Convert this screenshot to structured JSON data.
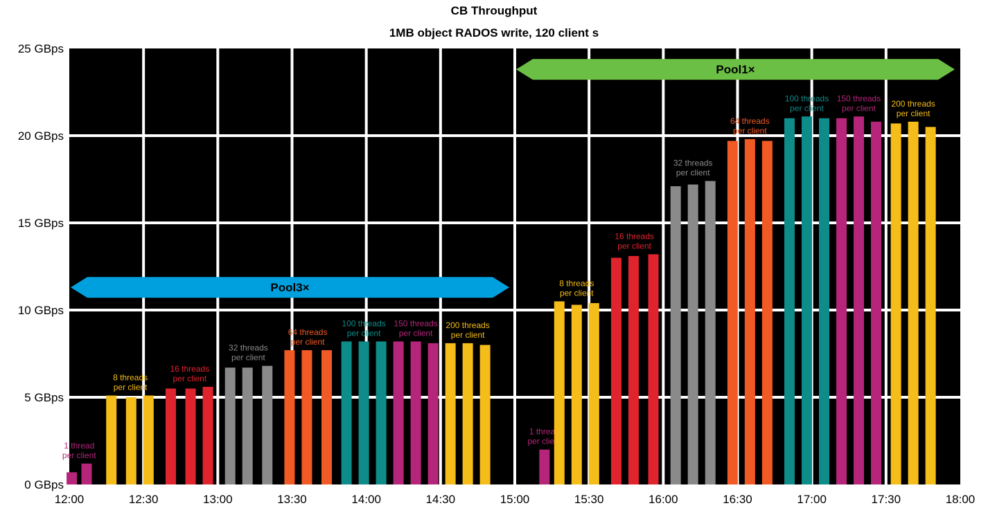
{
  "chart_data": {
    "type": "bar",
    "title": "CB Throughput",
    "subtitle": "1MB object RADOS write, 120 client s",
    "xlabel": "",
    "ylabel": "",
    "ylim": [
      0,
      25
    ],
    "y_ticks": [
      0,
      5,
      10,
      15,
      20,
      25
    ],
    "y_tick_labels": [
      "0 GBps",
      "5 GBps",
      "10 GBps",
      "15 GBps",
      "20 GBps",
      "25 GBps"
    ],
    "x_range_minutes": [
      720,
      1080
    ],
    "x_ticks_minutes": [
      720,
      750,
      780,
      810,
      840,
      870,
      900,
      930,
      960,
      990,
      1020,
      1050,
      1080
    ],
    "x_tick_labels": [
      "12:00",
      "12:30",
      "13:00",
      "13:30",
      "14:00",
      "14:30",
      "15:00",
      "15:30",
      "16:00",
      "16:30",
      "17:00",
      "17:30",
      "18:00"
    ],
    "grid": true,
    "background": "#000000",
    "colors": {
      "1_thread": "#b5267a",
      "8_threads": "#f5bd19",
      "16_threads": "#e0242d",
      "32_threads": "#8a8a8a",
      "64_threads": "#f15a24",
      "100_threads": "#0e8c8a",
      "150_threads": "#b5267a",
      "200_threads": "#f5bd19",
      "pool3_arrow": "#00a0de",
      "pool1_arrow": "#6bbf44"
    },
    "ranges": [
      {
        "label": "Pool3×",
        "start": "12:00",
        "end": "15:00",
        "y": 11.3,
        "color": "#00a0de"
      },
      {
        "label": "Pool1×",
        "start": "15:00",
        "end": "18:00",
        "y": 23.8,
        "color": "#6bbf44"
      }
    ],
    "groups": [
      {
        "pool": "Pool3×",
        "label": [
          "1 thread",
          "per client"
        ],
        "color_key": "1_thread",
        "times": [
          "12:01",
          "12:07"
        ],
        "values": [
          0.7,
          1.2
        ]
      },
      {
        "pool": "Pool3×",
        "label": [
          "8 threads",
          "per client"
        ],
        "color_key": "8_threads",
        "times": [
          "12:17",
          "12:25",
          "12:32"
        ],
        "values": [
          5.1,
          5.0,
          5.1
        ]
      },
      {
        "pool": "Pool3×",
        "label": [
          "16 threads",
          "per client"
        ],
        "color_key": "16_threads",
        "times": [
          "12:41",
          "12:49",
          "12:56"
        ],
        "values": [
          5.5,
          5.5,
          5.6
        ]
      },
      {
        "pool": "Pool3×",
        "label": [
          "32 threads",
          "per client"
        ],
        "color_key": "32_threads",
        "times": [
          "13:05",
          "13:12",
          "13:20"
        ],
        "values": [
          6.7,
          6.7,
          6.8
        ]
      },
      {
        "pool": "Pool3×",
        "label": [
          "64 threads",
          "per client"
        ],
        "color_key": "64_threads",
        "times": [
          "13:29",
          "13:36",
          "13:44"
        ],
        "values": [
          7.7,
          7.7,
          7.7
        ]
      },
      {
        "pool": "Pool3×",
        "label": [
          "100 threads",
          "per client"
        ],
        "color_key": "100_threads",
        "times": [
          "13:52",
          "13:59",
          "14:06"
        ],
        "values": [
          8.2,
          8.2,
          8.2
        ]
      },
      {
        "pool": "Pool3×",
        "label": [
          "150 threads",
          "per client"
        ],
        "color_key": "150_threads",
        "times": [
          "14:13",
          "14:20",
          "14:27"
        ],
        "values": [
          8.2,
          8.2,
          8.1
        ]
      },
      {
        "pool": "Pool3×",
        "label": [
          "200 threads",
          "per client"
        ],
        "color_key": "200_threads",
        "times": [
          "14:34",
          "14:41",
          "14:48"
        ],
        "values": [
          8.1,
          8.1,
          8.0
        ]
      },
      {
        "pool": "Pool1×",
        "label": [
          "1 thread",
          "per client"
        ],
        "color_key": "1_thread",
        "times": [
          "15:12"
        ],
        "values": [
          2.0
        ]
      },
      {
        "pool": "Pool1×",
        "label": [
          "8 threads",
          "per client"
        ],
        "color_key": "8_threads",
        "times": [
          "15:18",
          "15:25",
          "15:32"
        ],
        "values": [
          10.5,
          10.3,
          10.4
        ]
      },
      {
        "pool": "Pool1×",
        "label": [
          "16 threads",
          "per client"
        ],
        "color_key": "16_threads",
        "times": [
          "15:41",
          "15:48",
          "15:56"
        ],
        "values": [
          13.0,
          13.1,
          13.2
        ]
      },
      {
        "pool": "Pool1×",
        "label": [
          "32 threads",
          "per client"
        ],
        "color_key": "32_threads",
        "times": [
          "16:05",
          "16:12",
          "16:19"
        ],
        "values": [
          17.1,
          17.2,
          17.4
        ]
      },
      {
        "pool": "Pool1×",
        "label": [
          "64 threads",
          "per client"
        ],
        "color_key": "64_threads",
        "times": [
          "16:28",
          "16:35",
          "16:42"
        ],
        "values": [
          19.7,
          19.8,
          19.7
        ]
      },
      {
        "pool": "Pool1×",
        "label": [
          "100 threads",
          "per client"
        ],
        "color_key": "100_threads",
        "times": [
          "16:51",
          "16:58",
          "17:05"
        ],
        "values": [
          21.0,
          21.1,
          21.0
        ]
      },
      {
        "pool": "Pool1×",
        "label": [
          "150 threads",
          "per client"
        ],
        "color_key": "150_threads",
        "times": [
          "17:12",
          "17:19",
          "17:26"
        ],
        "values": [
          21.0,
          21.1,
          20.8
        ]
      },
      {
        "pool": "Pool1×",
        "label": [
          "200 threads",
          "per client"
        ],
        "color_key": "200_threads",
        "times": [
          "17:34",
          "17:41",
          "17:48"
        ],
        "values": [
          20.7,
          20.8,
          20.5
        ]
      }
    ]
  }
}
